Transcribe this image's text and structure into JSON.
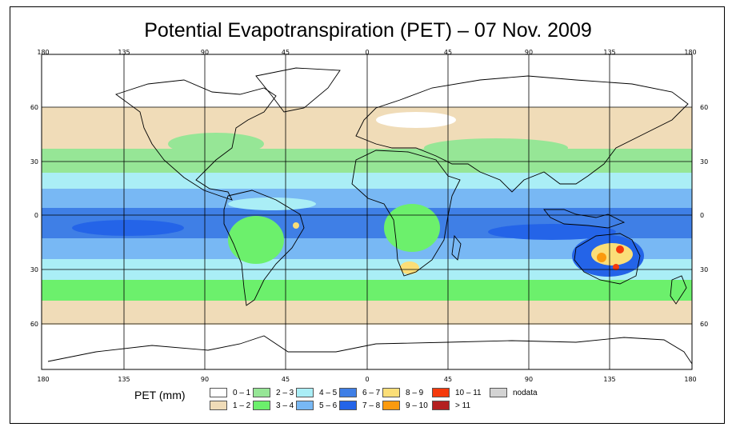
{
  "title": "Potential Evapotranspiration (PET) – 07 Nov. 2009",
  "map": {
    "type": "global choropleth map",
    "lon_ticks": [
      "180",
      "135",
      "90",
      "45",
      "0",
      "45",
      "90",
      "135",
      "180"
    ],
    "lat_ticks": [
      "60",
      "30",
      "0",
      "30",
      "60"
    ]
  },
  "legend": {
    "title": "PET (mm)",
    "items": [
      {
        "label": "0 – 1",
        "color": "#ffffff"
      },
      {
        "label": "1 – 2",
        "color": "#f0dcb8"
      },
      {
        "label": "2 – 3",
        "color": "#96e696"
      },
      {
        "label": "3 – 4",
        "color": "#6cf06c"
      },
      {
        "label": "4 – 5",
        "color": "#aaeef6"
      },
      {
        "label": "5 – 6",
        "color": "#78b8f4"
      },
      {
        "label": "6 – 7",
        "color": "#3f7fe6"
      },
      {
        "label": "7 – 8",
        "color": "#2464e8"
      },
      {
        "label": "8 – 9",
        "color": "#fbde78"
      },
      {
        "label": "9 – 10",
        "color": "#fb9a0e"
      },
      {
        "label": "10 – 11",
        "color": "#f53a0c"
      },
      {
        "label": "> 11",
        "color": "#b32020"
      },
      {
        "label": "nodata",
        "color": "#d3d3d3"
      }
    ]
  }
}
